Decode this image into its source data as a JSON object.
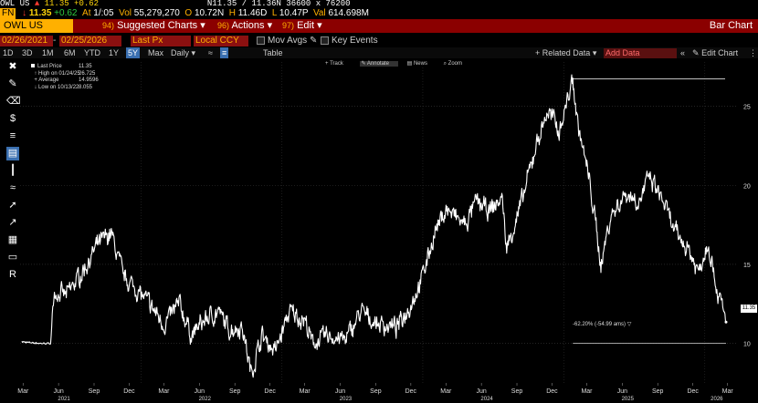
{
  "ticker": {
    "symbol": "OWL US",
    "icon": "signal-icon",
    "last": "11.35",
    "change": "+0.62",
    "quote": "N11.35 / 11.36N",
    "size": "36600 x 76200"
  },
  "quote_line": {
    "tag": "FN",
    "at_label": "At",
    "at": "1/:05",
    "vol_label": "Vol",
    "vol": "55,279,270",
    "open_label": "O",
    "open": "10.72N",
    "high_label": "H",
    "high": "11.46D",
    "low_label": "L",
    "low": "10.47P",
    "val_label": "Val",
    "val": "614.698M"
  },
  "title_bar": {
    "security": "OWL US Equity",
    "menus": [
      {
        "num": "94)",
        "label": "Suggested Charts"
      },
      {
        "num": "96)",
        "label": "Actions"
      },
      {
        "num": "97)",
        "label": "Edit"
      }
    ],
    "right": "Bar Chart"
  },
  "controls": {
    "start_date": "02/26/2021",
    "end_date": "02/25/2026",
    "field": "Last Px",
    "currency": "Local CCY",
    "mov_avgs": "Mov Avgs",
    "key_events": "Key Events"
  },
  "periods": {
    "items": [
      "1D",
      "3D",
      "1M",
      "6M",
      "YTD",
      "1Y",
      "5Y",
      "Max"
    ],
    "selected": "5Y",
    "freq": "Daily",
    "table": "Table",
    "related": "+ Related Data",
    "add_data": "Add Data",
    "edit_chart": "Edit Chart"
  },
  "chart_toolbar": [
    "Track",
    "Annotate",
    "News",
    "Zoom"
  ],
  "legend": {
    "rows": [
      {
        "label": "Last Price",
        "value": "11.35"
      },
      {
        "label": "High on 01/24/25",
        "value": "26.725"
      },
      {
        "label": "Average",
        "value": "14.9596"
      },
      {
        "label": "Low on 10/13/22",
        "value": "8.055"
      }
    ]
  },
  "drawdown_label": "-62.20% (-54.99 ams)",
  "price_tag": "11.35",
  "colors": {
    "background": "#000000",
    "title_bar": "#8b0000",
    "amber": "#ffb000",
    "field_bg": "#8b1010",
    "selected": "#3a6fb0",
    "line": "#ffffff"
  },
  "chart_data": {
    "type": "line",
    "title": "",
    "xlabel": "",
    "ylabel": "",
    "ylim": [
      7.5,
      27.8
    ],
    "y_ticks": [
      10,
      15,
      20,
      25
    ],
    "x_tick_labels": [
      "Mar",
      "Jun",
      "Sep",
      "Dec",
      "Mar",
      "Jun",
      "Sep",
      "Dec",
      "Mar",
      "Jun",
      "Sep",
      "Dec",
      "Mar",
      "Jun",
      "Sep",
      "Dec",
      "Mar",
      "Jun",
      "Sep",
      "Dec",
      "Mar"
    ],
    "year_labels": [
      "2021",
      "2022",
      "2023",
      "2024",
      "2025",
      "2026"
    ],
    "grid": true,
    "series": [
      {
        "x": [
          "2021-02-26",
          "2021-04-15",
          "2021-05-12",
          "2021-05-20",
          "2021-06-20",
          "2021-08-01",
          "2021-09-10",
          "2021-10-15",
          "2021-11-15",
          "2021-12-20",
          "2022-01-25",
          "2022-03-01",
          "2022-04-10",
          "2022-05-12",
          "2022-06-15",
          "2022-07-20",
          "2022-08-16",
          "2022-09-20",
          "2022-10-13",
          "2022-11-10",
          "2022-12-15",
          "2023-01-20",
          "2023-03-01",
          "2023-03-20",
          "2023-05-01",
          "2023-06-15",
          "2023-07-25",
          "2023-09-01",
          "2023-10-26",
          "2023-12-01",
          "2023-12-28",
          "2024-02-01",
          "2024-03-01",
          "2024-04-20",
          "2024-05-20",
          "2024-06-20",
          "2024-07-25",
          "2024-08-05",
          "2024-09-15",
          "2024-10-20",
          "2024-11-20",
          "2024-12-20",
          "2025-01-24",
          "2025-02-05",
          "2025-03-10",
          "2025-04-07",
          "2025-05-01",
          "2025-06-10",
          "2025-07-15",
          "2025-08-10",
          "2025-09-15",
          "2025-10-15",
          "2025-11-20",
          "2025-12-15",
          "2026-01-10",
          "2026-02-01",
          "2026-02-25"
        ],
        "y": [
          10.1,
          10.0,
          10.0,
          13.3,
          13.0,
          14.5,
          16.2,
          17.0,
          14.3,
          13.4,
          12.4,
          11.2,
          12.5,
          10.5,
          11.5,
          12.0,
          10.9,
          11.1,
          8.1,
          10.5,
          9.5,
          12.0,
          11.5,
          10.0,
          10.5,
          10.2,
          12.0,
          11.3,
          11.0,
          12.5,
          14.0,
          17.0,
          18.5,
          17.5,
          19.0,
          18.3,
          19.2,
          16.0,
          19.0,
          22.5,
          24.7,
          23.5,
          26.7,
          24.0,
          20.0,
          15.0,
          18.0,
          19.5,
          19.0,
          20.5,
          19.0,
          17.0,
          16.0,
          14.5,
          16.5,
          13.5,
          11.35
        ]
      }
    ],
    "high": {
      "date": "01/24/25",
      "value": 26.725
    },
    "low": {
      "date": "10/13/22",
      "value": 8.055
    },
    "average": 14.9596,
    "last": 11.35
  }
}
